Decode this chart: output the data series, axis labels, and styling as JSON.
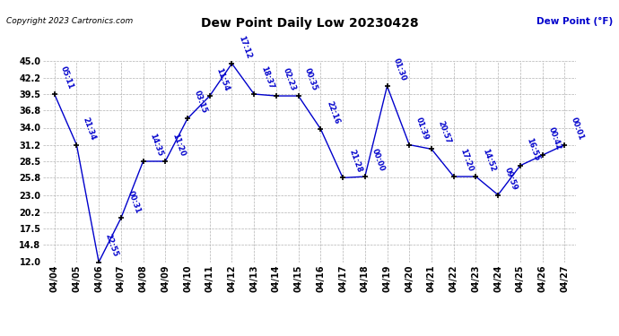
{
  "title": "Dew Point Daily Low 20230428",
  "ylabel": "Dew Point (°F)",
  "copyright": "Copyright 2023 Cartronics.com",
  "line_color": "#0000cc",
  "bg_color": "#ffffff",
  "grid_color": "#aaaaaa",
  "ylim": [
    12.0,
    45.0
  ],
  "yticks": [
    12.0,
    14.8,
    17.5,
    20.2,
    23.0,
    25.8,
    28.5,
    31.2,
    34.0,
    36.8,
    39.5,
    42.2,
    45.0
  ],
  "dates": [
    "04/04",
    "04/05",
    "04/06",
    "04/07",
    "04/08",
    "04/09",
    "04/10",
    "04/11",
    "04/12",
    "04/13",
    "04/14",
    "04/15",
    "04/16",
    "04/17",
    "04/18",
    "04/19",
    "04/20",
    "04/21",
    "04/22",
    "04/23",
    "04/24",
    "04/25",
    "04/26",
    "04/27"
  ],
  "x_indices": [
    0,
    1,
    2,
    3,
    4,
    5,
    6,
    7,
    8,
    9,
    10,
    11,
    12,
    13,
    14,
    15,
    16,
    17,
    18,
    19,
    20,
    21,
    22,
    23
  ],
  "values": [
    39.5,
    31.2,
    12.0,
    19.2,
    28.5,
    28.5,
    35.5,
    39.2,
    44.5,
    39.5,
    39.2,
    39.2,
    33.8,
    25.8,
    26.0,
    40.8,
    31.2,
    30.5,
    26.0,
    26.0,
    23.0,
    27.8,
    29.5,
    31.2
  ],
  "time_labels": [
    "05:11",
    "21:34",
    "22:55",
    "00:31",
    "14:35",
    "11:20",
    "03:15",
    "11:54",
    "17:12",
    "18:37",
    "02:23",
    "00:35",
    "22:16",
    "21:28",
    "00:00",
    "01:30",
    "01:39",
    "20:57",
    "17:20",
    "14:52",
    "09:59",
    "16:55",
    "00:42",
    "00:01"
  ]
}
